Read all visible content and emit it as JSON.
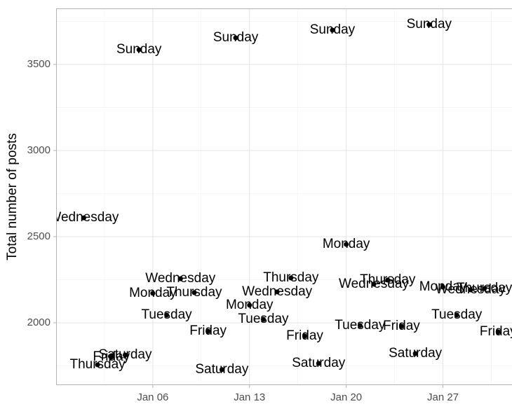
{
  "chart_data": {
    "type": "scatter",
    "y_label": "Total number of posts",
    "x": [
      "Jan 01",
      "Jan 02",
      "Jan 03",
      "Jan 04",
      "Jan 05",
      "Jan 06",
      "Jan 07",
      "Jan 08",
      "Jan 09",
      "Jan 10",
      "Jan 11",
      "Jan 12",
      "Jan 13",
      "Jan 14",
      "Jan 15",
      "Jan 16",
      "Jan 17",
      "Jan 18",
      "Jan 19",
      "Jan 20",
      "Jan 21",
      "Jan 22",
      "Jan 23",
      "Jan 24",
      "Jan 25",
      "Jan 26",
      "Jan 27",
      "Jan 28",
      "Jan 29",
      "Jan 30",
      "Jan 31"
    ],
    "values": [
      2609,
      1756,
      1801,
      1813,
      3585,
      2171,
      2045,
      2256,
      2175,
      1951,
      1728,
      3654,
      2102,
      2020,
      2179,
      2260,
      1923,
      1764,
      3699,
      2455,
      1984,
      2224,
      2248,
      1980,
      1821,
      3731,
      2207,
      2045,
      2191,
      2199,
      1947
    ],
    "labels": [
      "Wednesday",
      "Thursday",
      "Friday",
      "Saturday",
      "Sunday",
      "Monday",
      "Tuesday",
      "Wednesday",
      "Thursday",
      "Friday",
      "Saturday",
      "Sunday",
      "Monday",
      "Tuesday",
      "Wednesday",
      "Thursday",
      "Friday",
      "Saturday",
      "Sunday",
      "Monday",
      "Tuesday",
      "Wednesday",
      "Thursday",
      "Friday",
      "Saturday",
      "Sunday",
      "Monday",
      "Tuesday",
      "Wednesday",
      "Thursday",
      "Friday"
    ],
    "color": "#000000",
    "xlim": [
      "Dec 30",
      "Feb 01"
    ],
    "xticks": [
      "Jan 06",
      "Jan 13",
      "Jan 20",
      "Jan 27"
    ],
    "ylim": [
      1638,
      3825
    ],
    "yticks": [
      2000,
      2500,
      3000,
      3500
    ],
    "grid": true
  }
}
